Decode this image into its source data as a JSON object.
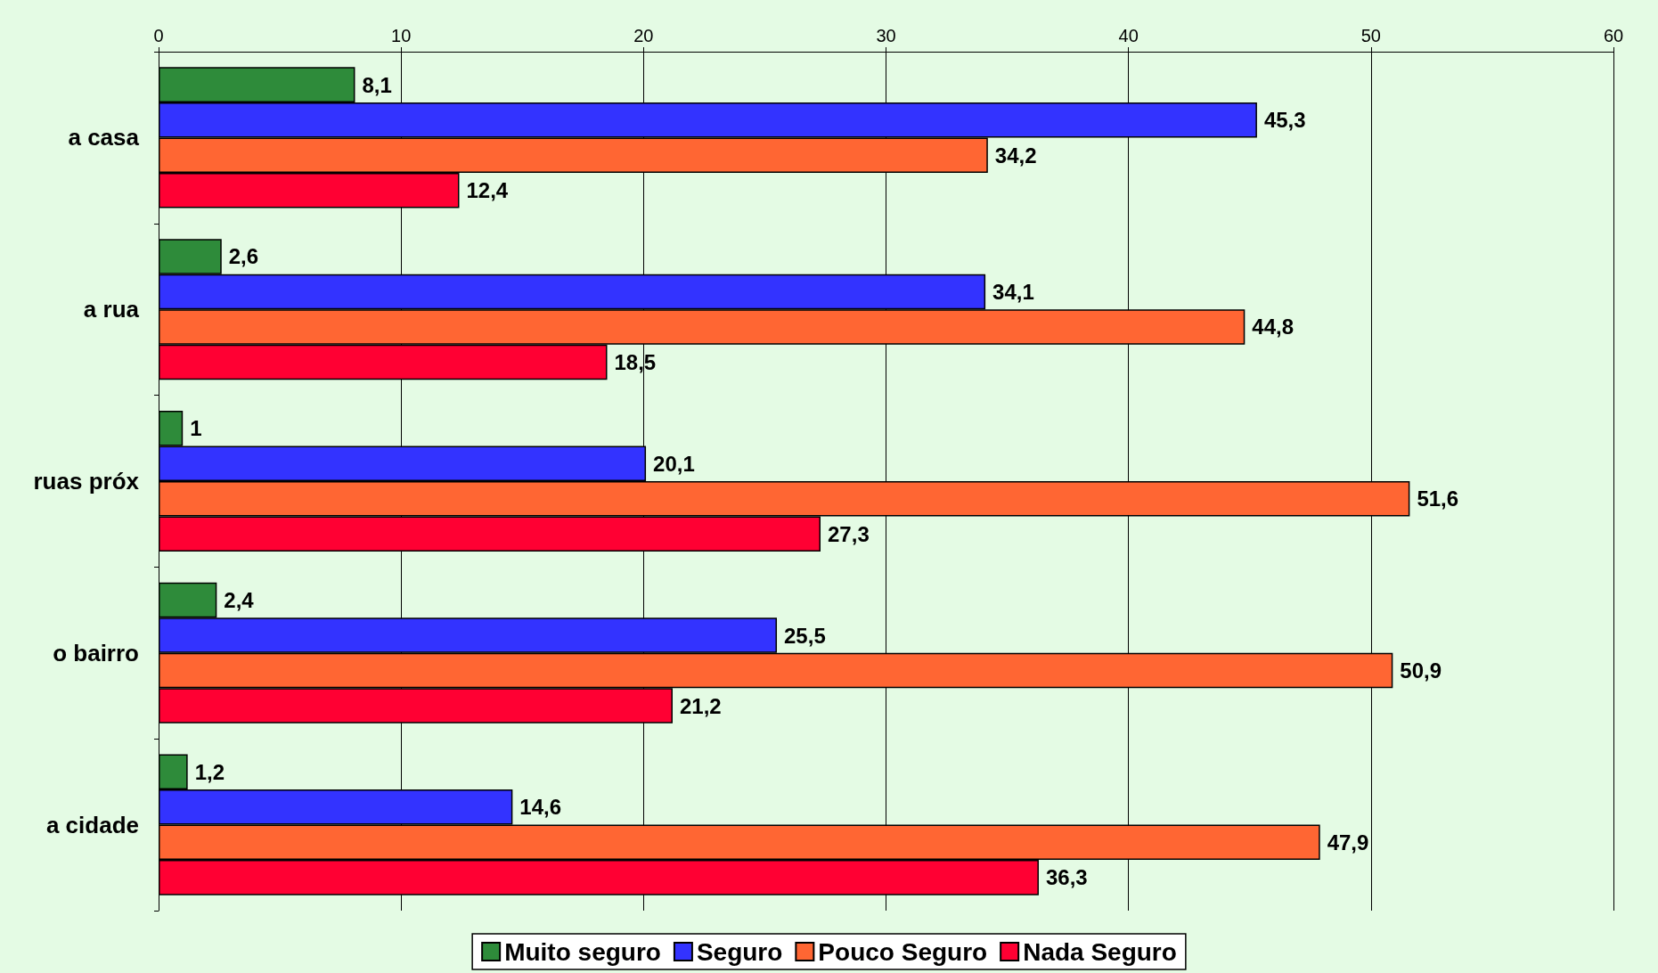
{
  "chart_data": {
    "type": "bar",
    "orientation": "horizontal",
    "categories": [
      "a casa",
      "a rua",
      "ruas próx",
      "o bairro",
      "a cidade"
    ],
    "series": [
      {
        "name": "Muito seguro",
        "color": "#2e8b3a",
        "values": [
          8.1,
          2.6,
          1,
          2.4,
          1.2
        ],
        "value_labels": [
          "8,1",
          "2,6",
          "1",
          "2,4",
          "1,2"
        ]
      },
      {
        "name": "Seguro",
        "color": "#3333ff",
        "values": [
          45.3,
          34.1,
          20.1,
          25.5,
          14.6
        ],
        "value_labels": [
          "45,3",
          "34,1",
          "20,1",
          "25,5",
          "14,6"
        ]
      },
      {
        "name": "Pouco Seguro",
        "color": "#ff6633",
        "values": [
          34.2,
          44.8,
          51.6,
          50.9,
          47.9
        ],
        "value_labels": [
          "34,2",
          "44,8",
          "51,6",
          "50,9",
          "47,9"
        ]
      },
      {
        "name": "Nada Seguro",
        "color": "#ff0033",
        "values": [
          12.4,
          18.5,
          27.3,
          21.2,
          36.3
        ],
        "value_labels": [
          "12,4",
          "18,5",
          "27,3",
          "21,2",
          "36,3"
        ]
      }
    ],
    "xlim": [
      0,
      60
    ],
    "xticks": [
      0,
      10,
      20,
      30,
      40,
      50,
      60
    ],
    "grid": "x",
    "legend": "bottom"
  }
}
